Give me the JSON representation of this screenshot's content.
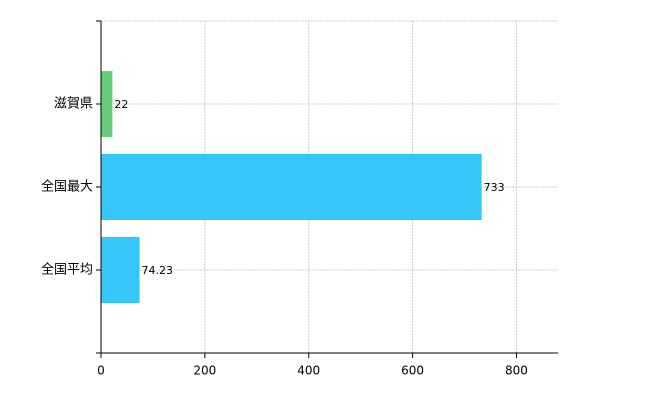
{
  "chart_data": {
    "type": "bar",
    "orientation": "horizontal",
    "categories": [
      "滋賀県",
      "全国最大",
      "全国平均"
    ],
    "values": [
      22,
      733,
      74.23
    ],
    "colors": [
      "#66cc77",
      "#33c6f7",
      "#33c6f7"
    ],
    "xlim": [
      0,
      880
    ],
    "xticks": [
      0,
      200,
      400,
      600,
      800
    ],
    "grid": true
  }
}
